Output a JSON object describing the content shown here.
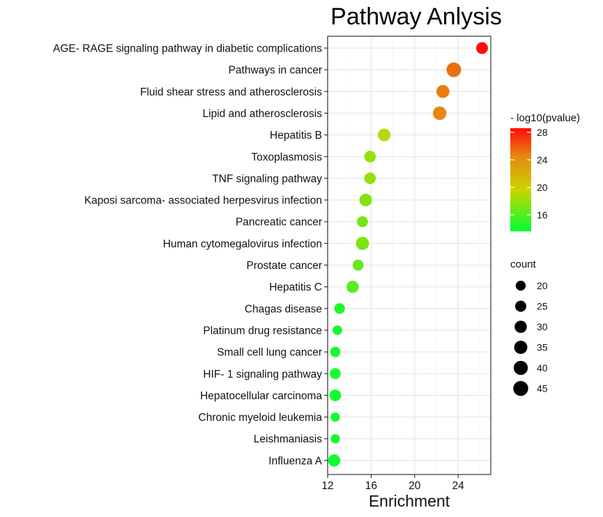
{
  "chart_data": {
    "type": "scatter",
    "title": "Pathway Anlysis",
    "xlabel": "Enrichment",
    "ylabel": "",
    "xlim": [
      12,
      27
    ],
    "xticks": [
      12,
      16,
      20,
      24
    ],
    "grid": true,
    "categories": [
      "AGE- RAGE signaling pathway in diabetic complications",
      "Pathways in cancer",
      "Fluid shear stress and atherosclerosis",
      "Lipid and atherosclerosis",
      "Hepatitis B",
      "Toxoplasmosis",
      "TNF signaling pathway",
      "Kaposi sarcoma- associated herpesvirus infection",
      "Pancreatic cancer",
      "Human cytomegalovirus infection",
      "Prostate cancer",
      "Hepatitis C",
      "Chagas disease",
      "Platinum drug resistance",
      "Small cell lung cancer",
      "HIF- 1 signaling pathway",
      "Hepatocellular carcinoma",
      "Chronic myeloid leukemia",
      "Leishmaniasis",
      "Influenza A"
    ],
    "enrichment": [
      26.2,
      23.6,
      22.6,
      22.3,
      17.2,
      15.9,
      15.9,
      15.5,
      15.2,
      15.2,
      14.8,
      14.3,
      13.1,
      12.9,
      12.7,
      12.7,
      12.7,
      12.7,
      12.7,
      12.6
    ],
    "count": [
      28,
      43,
      34,
      37,
      32,
      27,
      27,
      32,
      24,
      35,
      24,
      30,
      23,
      18,
      21,
      24,
      27,
      17,
      17,
      30
    ],
    "neg_log10_pvalue": [
      28.5,
      25.3,
      24.8,
      24.5,
      19.0,
      18.0,
      18.0,
      17.5,
      17.0,
      17.3,
      16.5,
      16.2,
      14.5,
      14.3,
      14.2,
      14.2,
      14.2,
      14.0,
      14.0,
      14.0
    ],
    "color_legend": {
      "title": "- log10(pvalue)",
      "ticks": [
        28,
        24,
        20,
        16
      ],
      "range": [
        13.6,
        28.6
      ],
      "colors": [
        "#00ff33",
        "#ccd400",
        "#e58a10",
        "#ff0a0a"
      ]
    },
    "size_legend": {
      "title": "count",
      "values": [
        20,
        25,
        30,
        35,
        40,
        45
      ]
    }
  }
}
